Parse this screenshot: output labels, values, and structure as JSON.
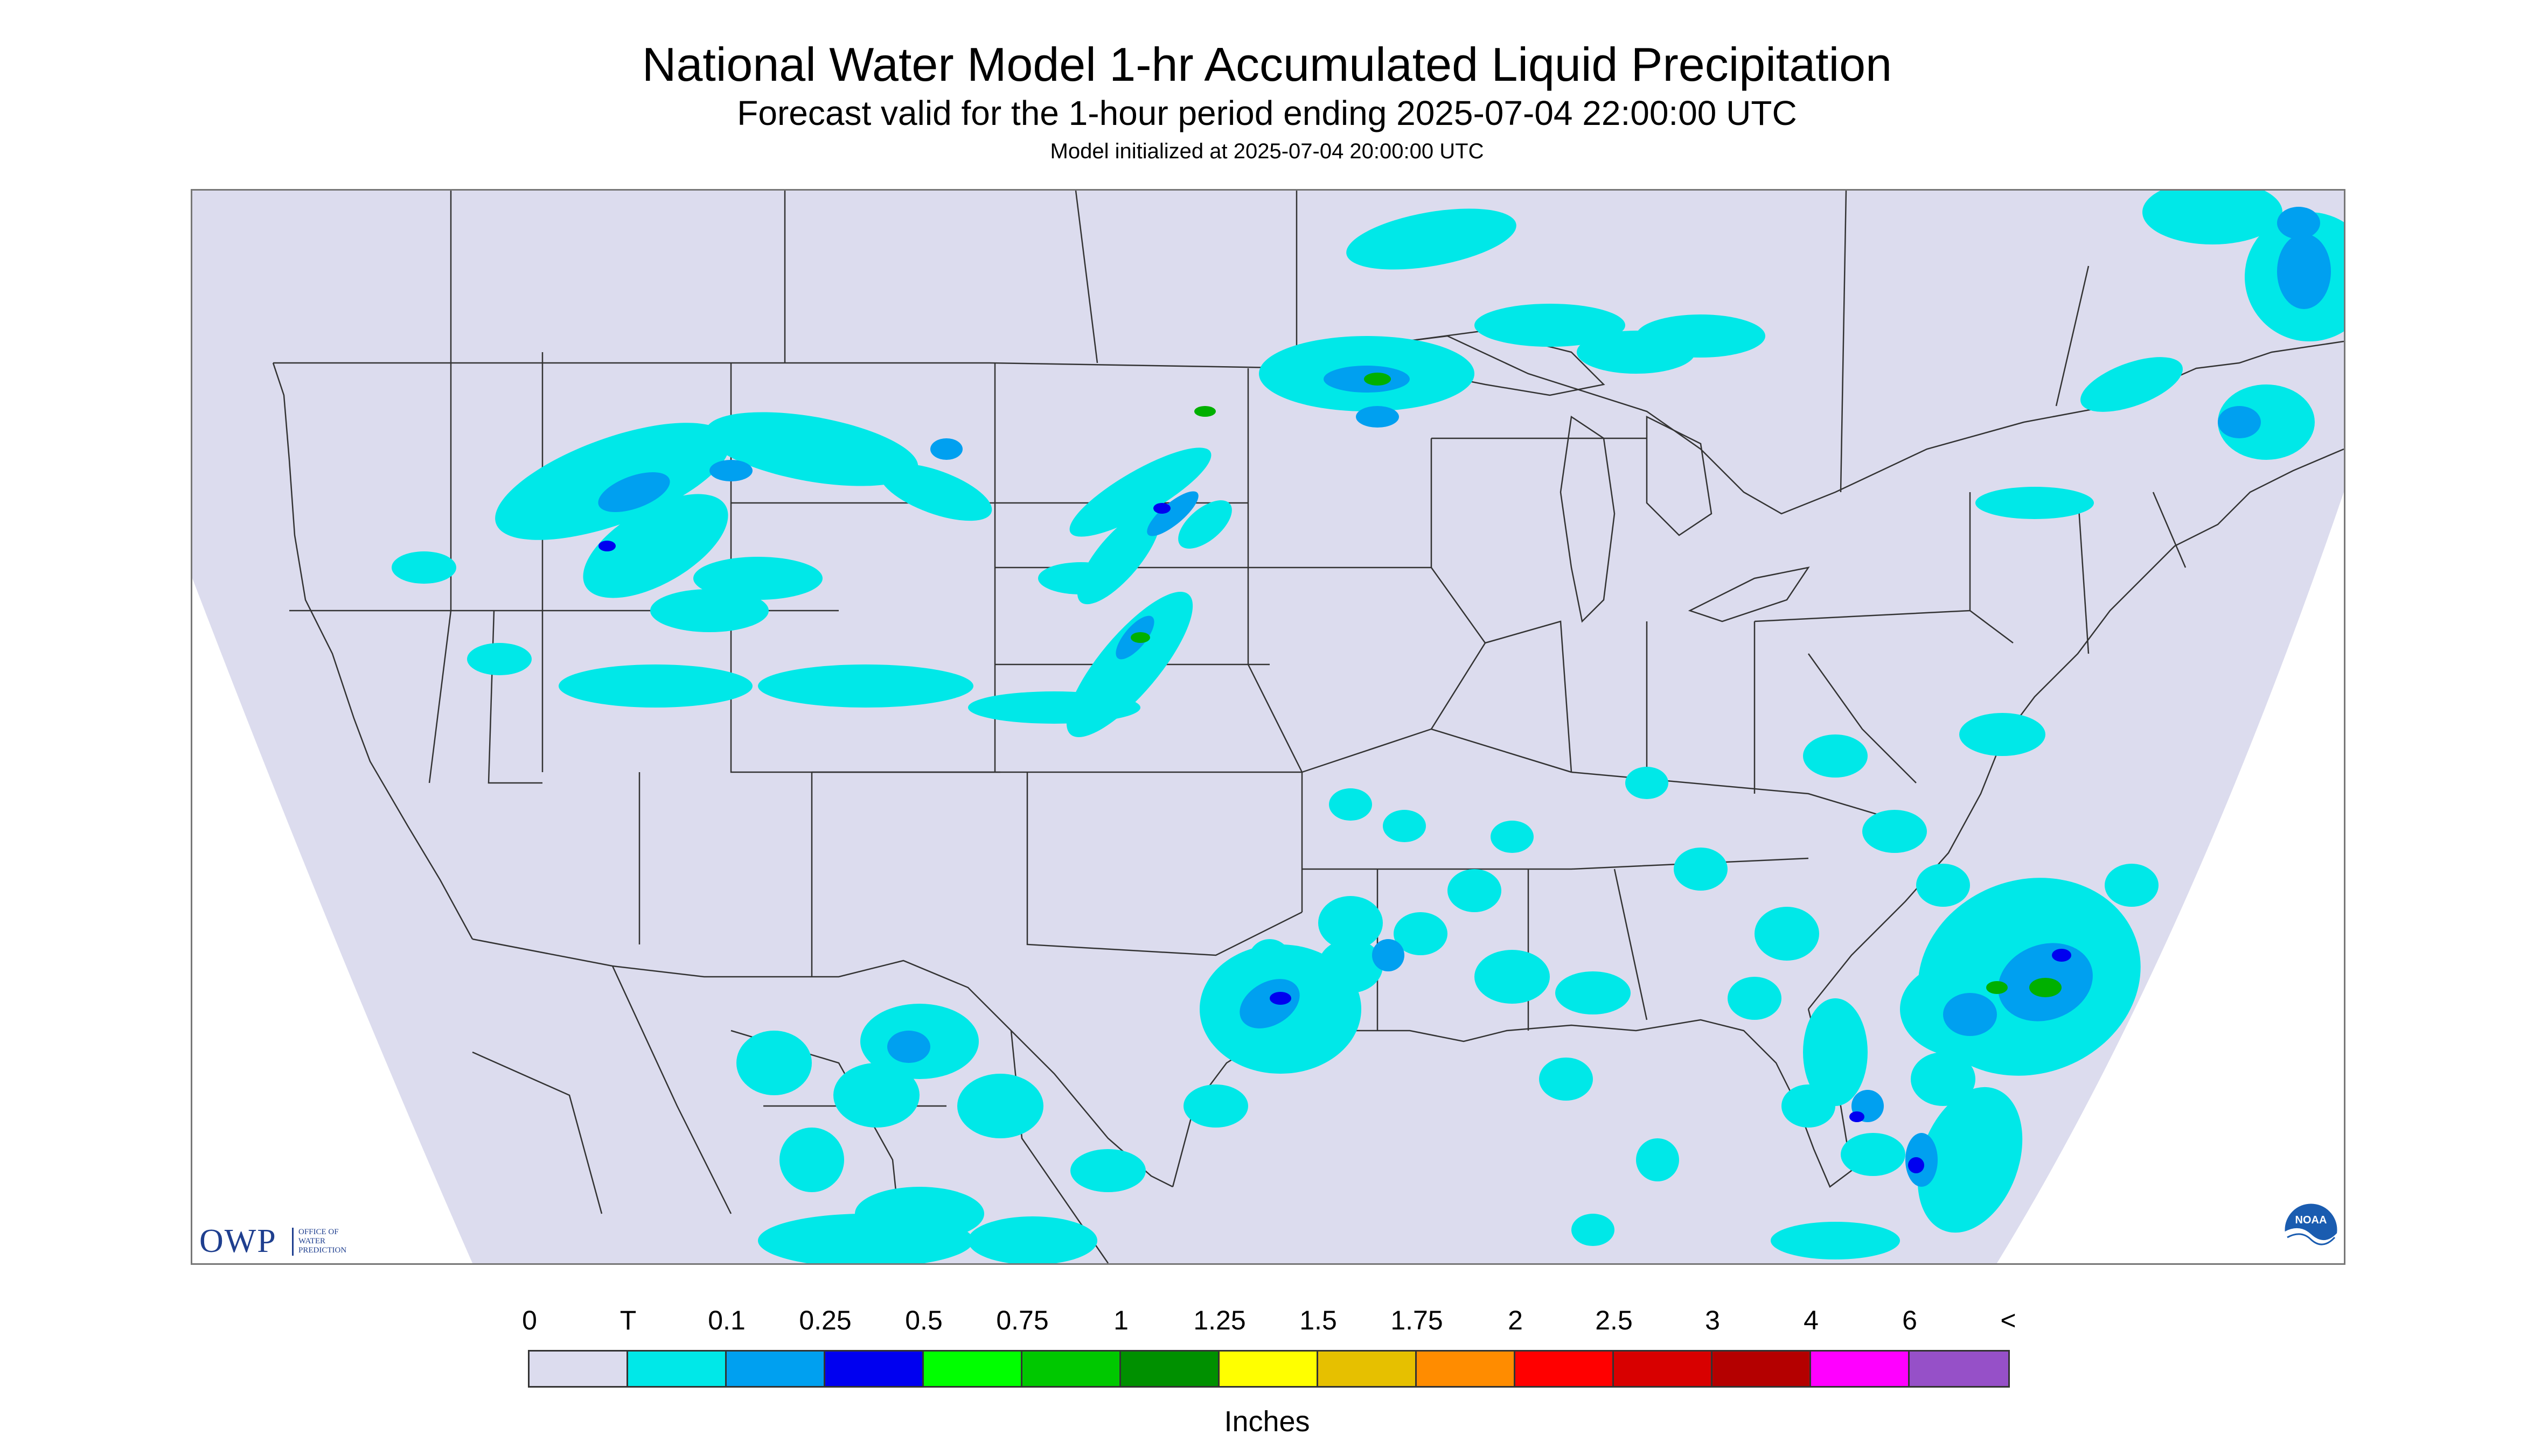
{
  "header": {
    "title": "National Water Model 1-hr Accumulated Liquid Precipitation",
    "subtitle": "Forecast valid for the 1-hour period ending 2025-07-04 22:00:00 UTC",
    "init_line": "Model initialized at 2025-07-04 20:00:00 UTC"
  },
  "map": {
    "background_color": "#dcdcee",
    "outside_color": "#ffffff",
    "boundary_color": "#333333",
    "shade_colors": {
      "trace": "#00e8e8",
      "light": "#00a0f0",
      "medium": "#0000f0",
      "heavy": "#00b000"
    }
  },
  "logos": {
    "owp_letters": "OWP",
    "owp_lines": [
      "OFFICE OF",
      "WATER",
      "PREDICTION"
    ],
    "owp_color": "#1f3f8f",
    "noaa_text": "NOAA"
  },
  "legend": {
    "labels": [
      "0",
      "T",
      "0.1",
      "0.25",
      "0.5",
      "0.75",
      "1",
      "1.25",
      "1.5",
      "1.75",
      "2",
      "2.5",
      "3",
      "4",
      "6",
      "<"
    ],
    "colors": [
      "#dcdcee",
      "#00e8e8",
      "#00a0f0",
      "#0000f0",
      "#00ff00",
      "#00c800",
      "#009000",
      "#ffff00",
      "#e6c000",
      "#ff8c00",
      "#ff0000",
      "#d80000",
      "#b40000",
      "#ff00ff",
      "#9650c8"
    ],
    "units": "Inches"
  }
}
